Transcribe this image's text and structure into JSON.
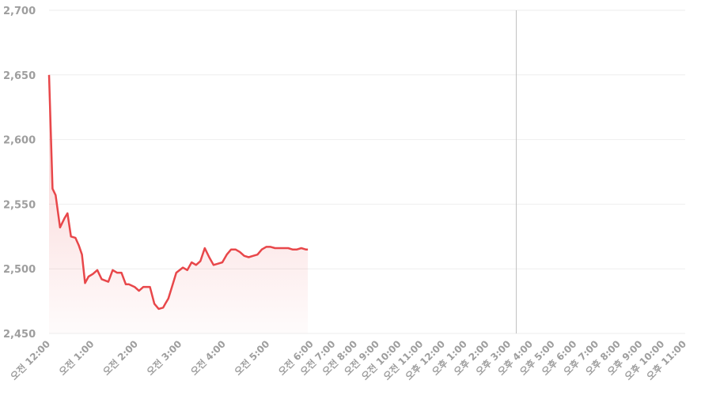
{
  "chart_data": {
    "type": "area",
    "ylim": [
      2450,
      2700
    ],
    "yticks": [
      "2,450",
      "2,500",
      "2,550",
      "2,600",
      "2,650",
      "2,700"
    ],
    "ytick_values": [
      2450,
      2500,
      2550,
      2600,
      2650,
      2700
    ],
    "xtick_labels": [
      "오전 12:00",
      "오전 1:00",
      "오전 2:00",
      "오전 3:00",
      "오전 4:00",
      "오전 5:00",
      "오전 6:00",
      "오전 7:00",
      "오전 8:00",
      "오전 9:00",
      "오전 10:00",
      "오전 11:00",
      "오후 12:00",
      "오후 1:00",
      "오후 2:00",
      "오후 3:00",
      "오후 4:00",
      "오후 5:00",
      "오후 6:00",
      "오후 7:00",
      "오후 8:00",
      "오후 9:00",
      "오후 10:00",
      "오후 11:00"
    ],
    "xtick_hours": [
      0,
      1,
      2,
      3,
      4,
      5,
      6,
      6.5,
      7,
      7.5,
      8,
      8.5,
      9,
      9.5,
      10,
      10.5,
      11,
      11.5,
      12,
      12.5,
      13,
      13.5,
      14,
      14.5
    ],
    "x_range_hours": [
      0,
      14.5
    ],
    "marker_hour": 10.65,
    "grid": true,
    "colors": {
      "line": "#e8474a",
      "grid": "#eeeeee",
      "marker": "#c0c0c0"
    },
    "series": [
      {
        "x": [
          0,
          0.08,
          0.15,
          0.25,
          0.35,
          0.42,
          0.5,
          0.6,
          0.68,
          0.75,
          0.82,
          0.9,
          1.0,
          1.1,
          1.2,
          1.35,
          1.45,
          1.55,
          1.65,
          1.75,
          1.82,
          1.95,
          2.05,
          2.15,
          2.3,
          2.4,
          2.5,
          2.6,
          2.65,
          2.72,
          2.8,
          2.9,
          3.05,
          3.15,
          3.25,
          3.35,
          3.45,
          3.55,
          3.65,
          3.75,
          3.85,
          3.95,
          4.05,
          4.15,
          4.25,
          4.35,
          4.45,
          4.55,
          4.65,
          4.75,
          4.85,
          4.95,
          5.05,
          5.15,
          5.25,
          5.35,
          5.45,
          5.55,
          5.65,
          5.75,
          5.85,
          5.9
        ],
        "values": [
          2650,
          2562,
          2557,
          2532,
          2539,
          2543,
          2525,
          2524,
          2518,
          2511,
          2489,
          2494,
          2496,
          2499,
          2492,
          2490,
          2499,
          2497,
          2497,
          2488,
          2488,
          2486,
          2483,
          2486,
          2486,
          2473,
          2469,
          2470,
          2473,
          2477,
          2486,
          2497,
          2501,
          2499,
          2505,
          2503,
          2506,
          2516,
          2509,
          2503,
          2504,
          2505,
          2511,
          2515,
          2515,
          2513,
          2510,
          2509,
          2510,
          2511,
          2515,
          2517,
          2517,
          2516,
          2516,
          2516,
          2516,
          2515,
          2515,
          2516,
          2515,
          2515
        ]
      }
    ]
  }
}
